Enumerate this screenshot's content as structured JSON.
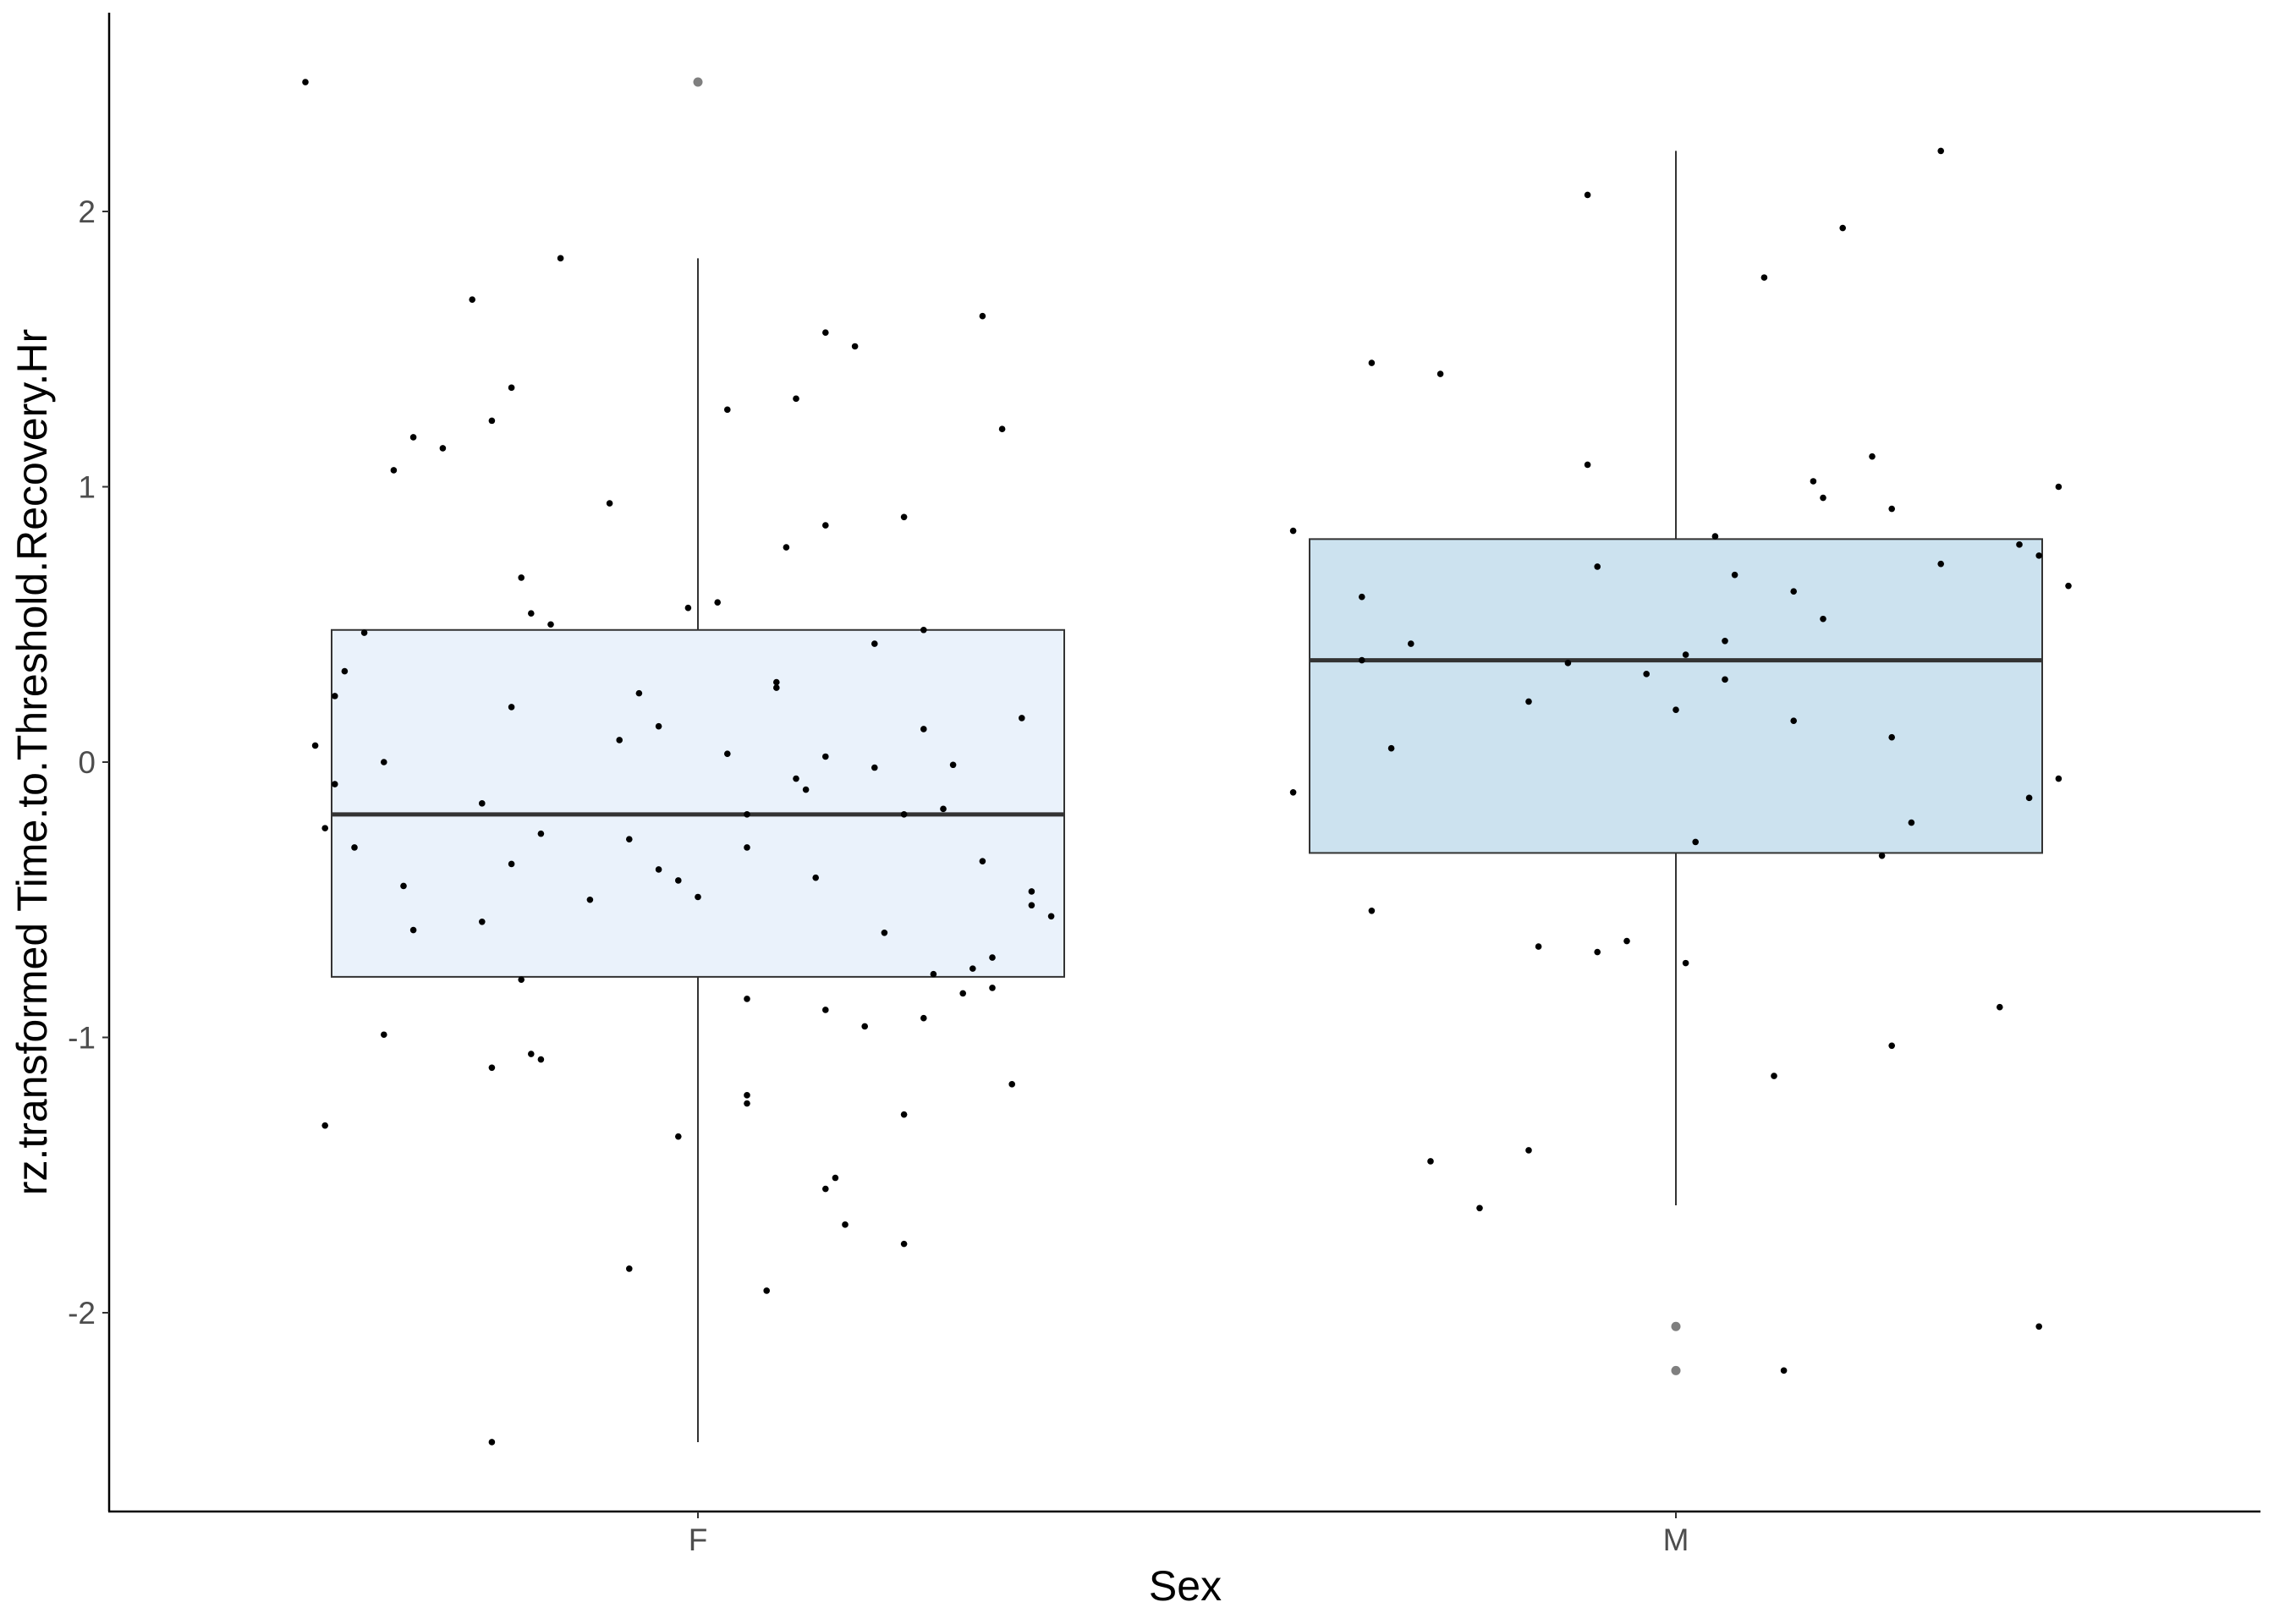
{
  "chart_data": {
    "type": "boxplot",
    "xlabel": "Sex",
    "ylabel": "rz.transformed Time.to.Threshold.Recovery.Hr",
    "categories": [
      "F",
      "M"
    ],
    "ylim": [
      -2.72,
      2.73
    ],
    "yticks": [
      -2,
      -1,
      0,
      1,
      2
    ],
    "grid": false,
    "legend": "none",
    "colors": {
      "F": "#eaf2fb",
      "M": "#cce2ef",
      "outline": "#333333",
      "points": "#000000",
      "outliers": "#7f7f7f"
    },
    "boxes": [
      {
        "category": "F",
        "whisker_low": -2.47,
        "q1": -0.78,
        "median": -0.19,
        "q3": 0.48,
        "whisker_high": 1.83,
        "outliers": [
          2.47
        ]
      },
      {
        "category": "M",
        "whisker_low": -1.61,
        "q1": -0.33,
        "median": 0.37,
        "q3": 0.81,
        "whisker_high": 2.22,
        "outliers": [
          -2.05,
          -2.21
        ]
      }
    ],
    "points": [
      {
        "category": "F",
        "jitter": -0.4,
        "y": 2.47
      },
      {
        "category": "F",
        "jitter": -0.39,
        "y": 0.06
      },
      {
        "category": "F",
        "jitter": -0.38,
        "y": -0.24
      },
      {
        "category": "F",
        "jitter": -0.38,
        "y": -1.32
      },
      {
        "category": "F",
        "jitter": -0.37,
        "y": -0.08
      },
      {
        "category": "F",
        "jitter": -0.37,
        "y": 0.24
      },
      {
        "category": "F",
        "jitter": -0.36,
        "y": 0.33
      },
      {
        "category": "F",
        "jitter": -0.35,
        "y": -0.31
      },
      {
        "category": "F",
        "jitter": -0.34,
        "y": 0.47
      },
      {
        "category": "F",
        "jitter": -0.32,
        "y": 0.0
      },
      {
        "category": "F",
        "jitter": -0.32,
        "y": -0.99
      },
      {
        "category": "F",
        "jitter": -0.31,
        "y": 1.06
      },
      {
        "category": "F",
        "jitter": -0.3,
        "y": -0.45
      },
      {
        "category": "F",
        "jitter": -0.29,
        "y": 1.18
      },
      {
        "category": "F",
        "jitter": -0.29,
        "y": -0.61
      },
      {
        "category": "F",
        "jitter": -0.26,
        "y": 1.14
      },
      {
        "category": "F",
        "jitter": -0.23,
        "y": 1.68
      },
      {
        "category": "F",
        "jitter": -0.22,
        "y": -0.15
      },
      {
        "category": "F",
        "jitter": -0.22,
        "y": -0.58
      },
      {
        "category": "F",
        "jitter": -0.21,
        "y": 1.24
      },
      {
        "category": "F",
        "jitter": -0.21,
        "y": -2.47
      },
      {
        "category": "F",
        "jitter": -0.21,
        "y": -1.11
      },
      {
        "category": "F",
        "jitter": -0.19,
        "y": 1.36
      },
      {
        "category": "F",
        "jitter": -0.19,
        "y": 0.2
      },
      {
        "category": "F",
        "jitter": -0.19,
        "y": -0.37
      },
      {
        "category": "F",
        "jitter": -0.18,
        "y": 0.67
      },
      {
        "category": "F",
        "jitter": -0.18,
        "y": -0.79
      },
      {
        "category": "F",
        "jitter": -0.17,
        "y": 0.54
      },
      {
        "category": "F",
        "jitter": -0.17,
        "y": -1.06
      },
      {
        "category": "F",
        "jitter": -0.16,
        "y": -0.26
      },
      {
        "category": "F",
        "jitter": -0.16,
        "y": -1.08
      },
      {
        "category": "F",
        "jitter": -0.15,
        "y": 0.5
      },
      {
        "category": "F",
        "jitter": -0.14,
        "y": 1.83
      },
      {
        "category": "F",
        "jitter": -0.11,
        "y": -0.5
      },
      {
        "category": "F",
        "jitter": -0.09,
        "y": 0.94
      },
      {
        "category": "F",
        "jitter": -0.08,
        "y": 0.08
      },
      {
        "category": "F",
        "jitter": -0.07,
        "y": -0.28
      },
      {
        "category": "F",
        "jitter": -0.07,
        "y": -1.84
      },
      {
        "category": "F",
        "jitter": -0.06,
        "y": 0.25
      },
      {
        "category": "F",
        "jitter": -0.04,
        "y": -0.39
      },
      {
        "category": "F",
        "jitter": -0.04,
        "y": 0.13
      },
      {
        "category": "F",
        "jitter": -0.02,
        "y": -0.43
      },
      {
        "category": "F",
        "jitter": -0.02,
        "y": -1.36
      },
      {
        "category": "F",
        "jitter": -0.01,
        "y": 0.56
      },
      {
        "category": "F",
        "jitter": -0.0,
        "y": -0.49
      },
      {
        "category": "F",
        "jitter": 0.02,
        "y": 0.58
      },
      {
        "category": "F",
        "jitter": 0.03,
        "y": 0.03
      },
      {
        "category": "F",
        "jitter": 0.03,
        "y": 1.28
      },
      {
        "category": "F",
        "jitter": 0.05,
        "y": -0.31
      },
      {
        "category": "F",
        "jitter": 0.05,
        "y": -0.86
      },
      {
        "category": "F",
        "jitter": 0.05,
        "y": -1.21
      },
      {
        "category": "F",
        "jitter": 0.05,
        "y": -1.24
      },
      {
        "category": "F",
        "jitter": 0.05,
        "y": -0.19
      },
      {
        "category": "F",
        "jitter": 0.07,
        "y": -1.92
      },
      {
        "category": "F",
        "jitter": 0.08,
        "y": 0.29
      },
      {
        "category": "F",
        "jitter": 0.08,
        "y": 0.27
      },
      {
        "category": "F",
        "jitter": 0.09,
        "y": 0.78
      },
      {
        "category": "F",
        "jitter": 0.1,
        "y": -0.06
      },
      {
        "category": "F",
        "jitter": 0.1,
        "y": 1.32
      },
      {
        "category": "F",
        "jitter": 0.11,
        "y": -0.1
      },
      {
        "category": "F",
        "jitter": 0.12,
        "y": -0.42
      },
      {
        "category": "F",
        "jitter": 0.13,
        "y": -1.55
      },
      {
        "category": "F",
        "jitter": 0.13,
        "y": 1.56
      },
      {
        "category": "F",
        "jitter": 0.13,
        "y": 0.86
      },
      {
        "category": "F",
        "jitter": 0.13,
        "y": 0.02
      },
      {
        "category": "F",
        "jitter": 0.13,
        "y": -0.9
      },
      {
        "category": "F",
        "jitter": 0.14,
        "y": -1.51
      },
      {
        "category": "F",
        "jitter": 0.15,
        "y": -1.68
      },
      {
        "category": "F",
        "jitter": 0.16,
        "y": 1.51
      },
      {
        "category": "F",
        "jitter": 0.17,
        "y": -0.96
      },
      {
        "category": "F",
        "jitter": 0.18,
        "y": 0.43
      },
      {
        "category": "F",
        "jitter": 0.18,
        "y": -0.02
      },
      {
        "category": "F",
        "jitter": 0.19,
        "y": -0.62
      },
      {
        "category": "F",
        "jitter": 0.21,
        "y": -1.75
      },
      {
        "category": "F",
        "jitter": 0.21,
        "y": 0.89
      },
      {
        "category": "F",
        "jitter": 0.21,
        "y": -0.19
      },
      {
        "category": "F",
        "jitter": 0.21,
        "y": -1.28
      },
      {
        "category": "F",
        "jitter": 0.23,
        "y": 0.48
      },
      {
        "category": "F",
        "jitter": 0.23,
        "y": -0.93
      },
      {
        "category": "F",
        "jitter": 0.23,
        "y": 0.12
      },
      {
        "category": "F",
        "jitter": 0.24,
        "y": -0.77
      },
      {
        "category": "F",
        "jitter": 0.25,
        "y": -0.17
      },
      {
        "category": "F",
        "jitter": 0.26,
        "y": -0.01
      },
      {
        "category": "F",
        "jitter": 0.27,
        "y": -0.84
      },
      {
        "category": "F",
        "jitter": 0.28,
        "y": -0.75
      },
      {
        "category": "F",
        "jitter": 0.29,
        "y": -0.36
      },
      {
        "category": "F",
        "jitter": 0.29,
        "y": 1.62
      },
      {
        "category": "F",
        "jitter": 0.3,
        "y": -0.71
      },
      {
        "category": "F",
        "jitter": 0.3,
        "y": -0.82
      },
      {
        "category": "F",
        "jitter": 0.31,
        "y": 1.21
      },
      {
        "category": "F",
        "jitter": 0.32,
        "y": -1.17
      },
      {
        "category": "F",
        "jitter": 0.33,
        "y": 0.16
      },
      {
        "category": "F",
        "jitter": 0.34,
        "y": -0.47
      },
      {
        "category": "F",
        "jitter": 0.34,
        "y": -0.52
      },
      {
        "category": "F",
        "jitter": 0.36,
        "y": -0.56
      },
      {
        "category": "M",
        "jitter": -0.39,
        "y": -0.11
      },
      {
        "category": "M",
        "jitter": -0.39,
        "y": 0.84
      },
      {
        "category": "M",
        "jitter": -0.32,
        "y": 0.6
      },
      {
        "category": "M",
        "jitter": -0.32,
        "y": 0.37
      },
      {
        "category": "M",
        "jitter": -0.31,
        "y": -0.54
      },
      {
        "category": "M",
        "jitter": -0.31,
        "y": 1.45
      },
      {
        "category": "M",
        "jitter": -0.29,
        "y": 0.05
      },
      {
        "category": "M",
        "jitter": -0.27,
        "y": 0.43
      },
      {
        "category": "M",
        "jitter": -0.25,
        "y": -1.45
      },
      {
        "category": "M",
        "jitter": -0.24,
        "y": 1.41
      },
      {
        "category": "M",
        "jitter": -0.2,
        "y": -1.62
      },
      {
        "category": "M",
        "jitter": -0.15,
        "y": 0.22
      },
      {
        "category": "M",
        "jitter": -0.15,
        "y": -1.41
      },
      {
        "category": "M",
        "jitter": -0.14,
        "y": -0.67
      },
      {
        "category": "M",
        "jitter": -0.11,
        "y": 0.36
      },
      {
        "category": "M",
        "jitter": -0.09,
        "y": 1.08
      },
      {
        "category": "M",
        "jitter": -0.09,
        "y": 2.06
      },
      {
        "category": "M",
        "jitter": -0.08,
        "y": -0.69
      },
      {
        "category": "M",
        "jitter": -0.08,
        "y": 0.71
      },
      {
        "category": "M",
        "jitter": -0.05,
        "y": -0.65
      },
      {
        "category": "M",
        "jitter": -0.03,
        "y": 0.32
      },
      {
        "category": "M",
        "jitter": 0.0,
        "y": 0.19
      },
      {
        "category": "M",
        "jitter": 0.01,
        "y": 0.39
      },
      {
        "category": "M",
        "jitter": 0.01,
        "y": -0.73
      },
      {
        "category": "M",
        "jitter": 0.02,
        "y": -0.29
      },
      {
        "category": "M",
        "jitter": 0.04,
        "y": 0.82
      },
      {
        "category": "M",
        "jitter": 0.05,
        "y": 0.44
      },
      {
        "category": "M",
        "jitter": 0.05,
        "y": 0.3
      },
      {
        "category": "M",
        "jitter": 0.06,
        "y": 0.68
      },
      {
        "category": "M",
        "jitter": 0.09,
        "y": 1.76
      },
      {
        "category": "M",
        "jitter": 0.1,
        "y": -1.14
      },
      {
        "category": "M",
        "jitter": 0.11,
        "y": -2.21
      },
      {
        "category": "M",
        "jitter": 0.12,
        "y": 0.15
      },
      {
        "category": "M",
        "jitter": 0.12,
        "y": 0.62
      },
      {
        "category": "M",
        "jitter": 0.14,
        "y": 1.02
      },
      {
        "category": "M",
        "jitter": 0.15,
        "y": 0.96
      },
      {
        "category": "M",
        "jitter": 0.15,
        "y": 0.52
      },
      {
        "category": "M",
        "jitter": 0.17,
        "y": 1.94
      },
      {
        "category": "M",
        "jitter": 0.2,
        "y": 1.11
      },
      {
        "category": "M",
        "jitter": 0.21,
        "y": -0.34
      },
      {
        "category": "M",
        "jitter": 0.22,
        "y": 0.09
      },
      {
        "category": "M",
        "jitter": 0.22,
        "y": 0.92
      },
      {
        "category": "M",
        "jitter": 0.22,
        "y": -1.03
      },
      {
        "category": "M",
        "jitter": 0.24,
        "y": -0.22
      },
      {
        "category": "M",
        "jitter": 0.27,
        "y": 2.22
      },
      {
        "category": "M",
        "jitter": 0.27,
        "y": 0.72
      },
      {
        "category": "M",
        "jitter": 0.33,
        "y": -0.89
      },
      {
        "category": "M",
        "jitter": 0.35,
        "y": 0.79
      },
      {
        "category": "M",
        "jitter": 0.36,
        "y": -0.13
      },
      {
        "category": "M",
        "jitter": 0.37,
        "y": 0.75
      },
      {
        "category": "M",
        "jitter": 0.37,
        "y": -2.05
      },
      {
        "category": "M",
        "jitter": 0.39,
        "y": 1.0
      },
      {
        "category": "M",
        "jitter": 0.39,
        "y": -0.06
      },
      {
        "category": "M",
        "jitter": 0.4,
        "y": 0.64
      }
    ]
  }
}
